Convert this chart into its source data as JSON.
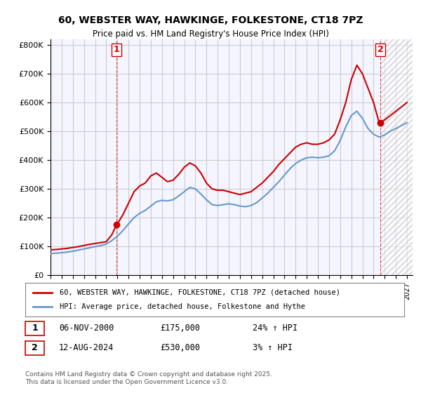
{
  "title": "60, WEBSTER WAY, HAWKINGE, FOLKESTONE, CT18 7PZ",
  "subtitle": "Price paid vs. HM Land Registry's House Price Index (HPI)",
  "legend_line1": "60, WEBSTER WAY, HAWKINGE, FOLKESTONE, CT18 7PZ (detached house)",
  "legend_line2": "HPI: Average price, detached house, Folkestone and Hythe",
  "footnote": "Contains HM Land Registry data © Crown copyright and database right 2025.\nThis data is licensed under the Open Government Licence v3.0.",
  "transaction1_label": "1",
  "transaction1_date": "06-NOV-2000",
  "transaction1_price": "£175,000",
  "transaction1_hpi": "24% ↑ HPI",
  "transaction2_label": "2",
  "transaction2_date": "12-AUG-2024",
  "transaction2_price": "£530,000",
  "transaction2_hpi": "3% ↑ HPI",
  "red_color": "#cc0000",
  "blue_color": "#6699cc",
  "background_color": "#ffffff",
  "grid_color": "#cccccc",
  "plot_bg_color": "#f5f5ff",
  "ylim": [
    0,
    820000
  ],
  "xlim_start": 1995.0,
  "xlim_end": 2027.5,
  "red_x": [
    1995.0,
    1995.5,
    1996.0,
    1996.5,
    1997.0,
    1997.5,
    1998.0,
    1998.5,
    1999.0,
    1999.5,
    2000.0,
    2000.5,
    2000.92,
    2001.0,
    2001.5,
    2002.0,
    2002.5,
    2003.0,
    2003.5,
    2004.0,
    2004.5,
    2005.0,
    2005.5,
    2006.0,
    2006.5,
    2007.0,
    2007.5,
    2008.0,
    2008.5,
    2009.0,
    2009.5,
    2010.0,
    2010.5,
    2011.0,
    2011.5,
    2012.0,
    2012.5,
    2013.0,
    2013.5,
    2014.0,
    2014.5,
    2015.0,
    2015.5,
    2016.0,
    2016.5,
    2017.0,
    2017.5,
    2018.0,
    2018.5,
    2019.0,
    2019.5,
    2020.0,
    2020.5,
    2021.0,
    2021.5,
    2022.0,
    2022.5,
    2023.0,
    2023.5,
    2024.0,
    2024.5,
    2024.62,
    2025.0,
    2025.5,
    2026.0,
    2026.5,
    2027.0
  ],
  "red_y": [
    88000,
    89000,
    91000,
    93000,
    96000,
    99000,
    103000,
    107000,
    110000,
    113000,
    116000,
    140000,
    175000,
    178000,
    210000,
    250000,
    290000,
    310000,
    320000,
    345000,
    355000,
    340000,
    325000,
    330000,
    350000,
    375000,
    390000,
    380000,
    355000,
    320000,
    300000,
    295000,
    295000,
    290000,
    285000,
    280000,
    285000,
    290000,
    305000,
    320000,
    340000,
    360000,
    385000,
    405000,
    425000,
    445000,
    455000,
    460000,
    455000,
    455000,
    460000,
    470000,
    490000,
    540000,
    600000,
    680000,
    730000,
    700000,
    650000,
    600000,
    530000,
    530000,
    540000,
    555000,
    570000,
    585000,
    600000
  ],
  "blue_x": [
    1995.0,
    1995.5,
    1996.0,
    1996.5,
    1997.0,
    1997.5,
    1998.0,
    1998.5,
    1999.0,
    1999.5,
    2000.0,
    2000.5,
    2001.0,
    2001.5,
    2002.0,
    2002.5,
    2003.0,
    2003.5,
    2004.0,
    2004.5,
    2005.0,
    2005.5,
    2006.0,
    2006.5,
    2007.0,
    2007.5,
    2008.0,
    2008.5,
    2009.0,
    2009.5,
    2010.0,
    2010.5,
    2011.0,
    2011.5,
    2012.0,
    2012.5,
    2013.0,
    2013.5,
    2014.0,
    2014.5,
    2015.0,
    2015.5,
    2016.0,
    2016.5,
    2017.0,
    2017.5,
    2018.0,
    2018.5,
    2019.0,
    2019.5,
    2020.0,
    2020.5,
    2021.0,
    2021.5,
    2022.0,
    2022.5,
    2023.0,
    2023.5,
    2024.0,
    2024.5,
    2025.0,
    2025.5,
    2026.0,
    2026.5,
    2027.0
  ],
  "blue_y": [
    75000,
    76000,
    78000,
    80000,
    83000,
    87000,
    91000,
    95000,
    99000,
    103000,
    108000,
    120000,
    135000,
    155000,
    178000,
    200000,
    215000,
    225000,
    240000,
    255000,
    260000,
    258000,
    262000,
    275000,
    290000,
    305000,
    300000,
    282000,
    262000,
    245000,
    242000,
    245000,
    248000,
    245000,
    240000,
    238000,
    242000,
    252000,
    268000,
    285000,
    305000,
    325000,
    348000,
    370000,
    388000,
    400000,
    408000,
    410000,
    408000,
    410000,
    415000,
    432000,
    468000,
    515000,
    555000,
    570000,
    545000,
    510000,
    490000,
    480000,
    488000,
    500000,
    510000,
    520000,
    530000
  ],
  "marker1_x": 2000.92,
  "marker1_y": 175000,
  "marker2_x": 2024.62,
  "marker2_y": 530000,
  "hatch_x_start": 2024.62,
  "hatch_x_end": 2027.5
}
